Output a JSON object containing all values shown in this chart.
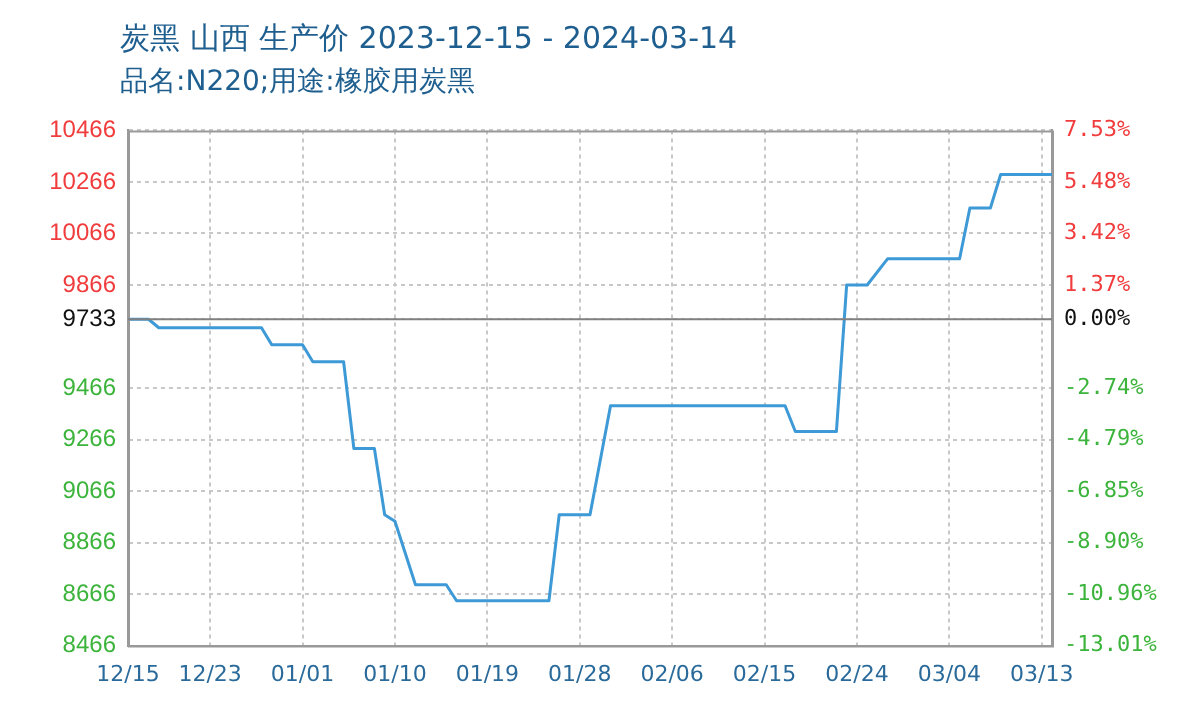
{
  "chart_data": {
    "type": "line",
    "title": "炭黑 山西 生产价 2023-12-15 - 2024-03-14",
    "subtitle": "品名:N220;用途:橡胶用炭黑",
    "x": [
      "2023-12-15",
      "2023-12-17",
      "2023-12-18",
      "2023-12-28",
      "2023-12-29",
      "2024-01-01",
      "2024-01-02",
      "2024-01-05",
      "2024-01-06",
      "2024-01-08",
      "2024-01-09",
      "2024-01-10",
      "2024-01-12",
      "2024-01-15",
      "2024-01-16",
      "2024-01-25",
      "2024-01-26",
      "2024-01-29",
      "2024-01-31",
      "2024-02-17",
      "2024-02-18",
      "2024-02-22",
      "2024-02-23",
      "2024-02-25",
      "2024-02-27",
      "2024-03-05",
      "2024-03-06",
      "2024-03-08",
      "2024-03-09",
      "2024-03-14"
    ],
    "series": [
      {
        "color": "#3d9ad6",
        "values": [
          9733,
          9733,
          9700,
          9700,
          9634,
          9634,
          9568,
          9568,
          9231,
          9231,
          8974,
          8949,
          8702,
          8702,
          8640,
          8640,
          8974,
          8974,
          9397,
          9397,
          9297,
          9297,
          9866,
          9866,
          9968,
          9968,
          10165,
          10165,
          10295,
          10295
        ]
      }
    ],
    "xlim": [
      "2023-12-15",
      "2024-03-14"
    ],
    "xticks": [
      {
        "value": "2023-12-15",
        "label": "12/15"
      },
      {
        "value": "2023-12-23",
        "label": "12/23"
      },
      {
        "value": "2024-01-01",
        "label": "01/01"
      },
      {
        "value": "2024-01-10",
        "label": "01/10"
      },
      {
        "value": "2024-01-19",
        "label": "01/19"
      },
      {
        "value": "2024-01-28",
        "label": "01/28"
      },
      {
        "value": "2024-02-06",
        "label": "02/06"
      },
      {
        "value": "2024-02-15",
        "label": "02/15"
      },
      {
        "value": "2024-02-24",
        "label": "02/24"
      },
      {
        "value": "2024-03-04",
        "label": "03/04"
      },
      {
        "value": "2024-03-13",
        "label": "03/13"
      }
    ],
    "ylim": [
      8466,
      10466
    ],
    "yticks": [
      10466,
      10266,
      10066,
      9866,
      9733,
      9466,
      9266,
      9066,
      8866,
      8666,
      8466
    ],
    "y2lim": [
      -13.01,
      7.53
    ],
    "y2ticks": [
      {
        "value": 7.53,
        "label": "7.53%"
      },
      {
        "value": 5.48,
        "label": "5.48%"
      },
      {
        "value": 3.42,
        "label": "3.42%"
      },
      {
        "value": 1.37,
        "label": "1.37%"
      },
      {
        "value": 0,
        "label": "0.00%"
      },
      {
        "value": -2.74,
        "label": "-2.74%"
      },
      {
        "value": -4.79,
        "label": "-4.79%"
      },
      {
        "value": -6.85,
        "label": "-6.85%"
      },
      {
        "value": -8.9,
        "label": "-8.90%"
      },
      {
        "value": -10.96,
        "label": "-10.96%"
      },
      {
        "value": -13.01,
        "label": "-13.01%"
      }
    ],
    "ref_lines": [
      {
        "axis": "y",
        "value": 9733,
        "color": "#808080"
      }
    ],
    "grid": true,
    "legend": false,
    "marker": "none",
    "line_style": "solid"
  }
}
